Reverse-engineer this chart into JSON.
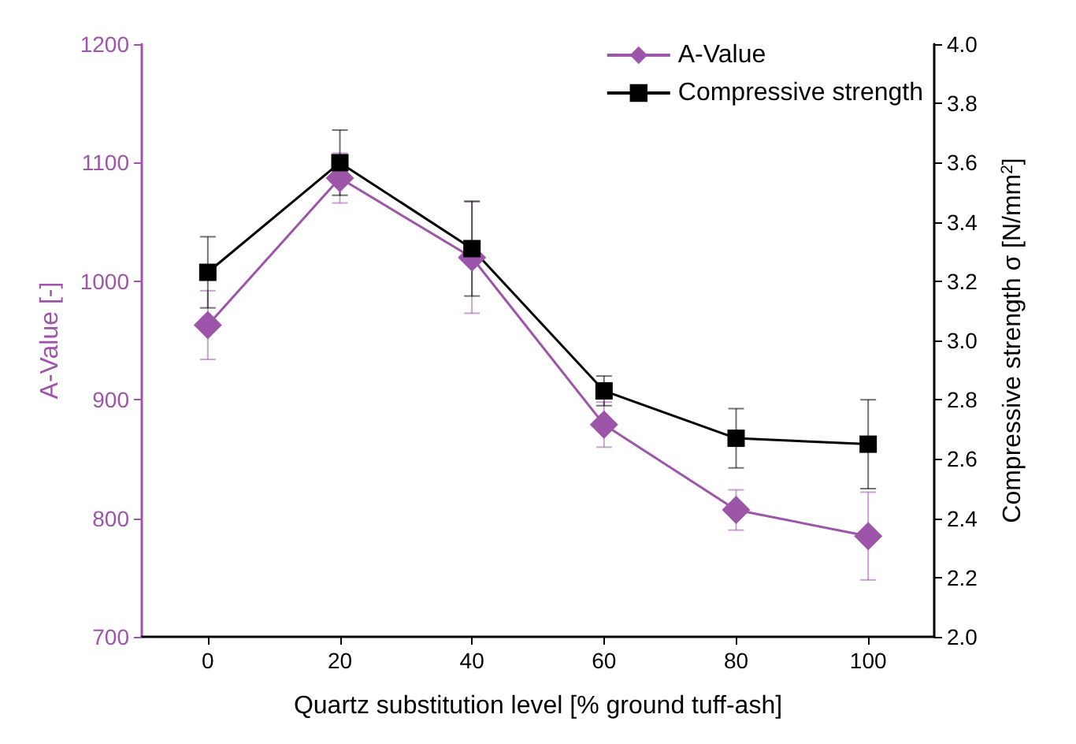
{
  "chart_data": {
    "type": "line",
    "xlabel": "Quartz substitution level [% ground tuff-ash]",
    "ylabel": "A-Value [-]",
    "y2label": "Compressive strength σ [N/mm$^{2}$]",
    "x": [
      0,
      20,
      40,
      60,
      80,
      100
    ],
    "series": [
      {
        "name": "A-Value",
        "color": "#9c55a8",
        "marker": "diamond",
        "values": [
          963,
          1087,
          1020,
          879,
          807,
          785
        ],
        "errors": [
          29,
          21,
          47,
          19,
          17,
          37
        ]
      },
      {
        "name": "Compressive strength",
        "color": "#000000",
        "marker": "square",
        "axis": "y2",
        "values": [
          3.23,
          3.6,
          3.31,
          2.83,
          2.67,
          2.65
        ],
        "errors": [
          0.12,
          0.11,
          0.16,
          0.05,
          0.1,
          0.15
        ]
      }
    ],
    "xlim": [
      -10,
      110
    ],
    "xticks": [
      0,
      20,
      40,
      60,
      80,
      100
    ],
    "ylim": [
      700,
      1200
    ],
    "yticks": [
      700,
      800,
      900,
      1000,
      1100,
      1200
    ],
    "y2lim": [
      2,
      4
    ],
    "y2ticks": [
      {
        "value": 2,
        "label": "2.0"
      },
      {
        "value": 2.2,
        "label": "2.2"
      },
      {
        "value": 2.4,
        "label": "2.4"
      },
      {
        "value": 2.6,
        "label": "2.6"
      },
      {
        "value": 2.8,
        "label": "2.8"
      },
      {
        "value": 3,
        "label": "3.0"
      },
      {
        "value": 3.2,
        "label": "3.2"
      },
      {
        "value": 3.4,
        "label": "3.4"
      },
      {
        "value": 3.6,
        "label": "3.6"
      },
      {
        "value": 3.8,
        "label": "3.8"
      },
      {
        "value": 4,
        "label": "4.0"
      }
    ],
    "legend": "top right",
    "grid": false
  }
}
